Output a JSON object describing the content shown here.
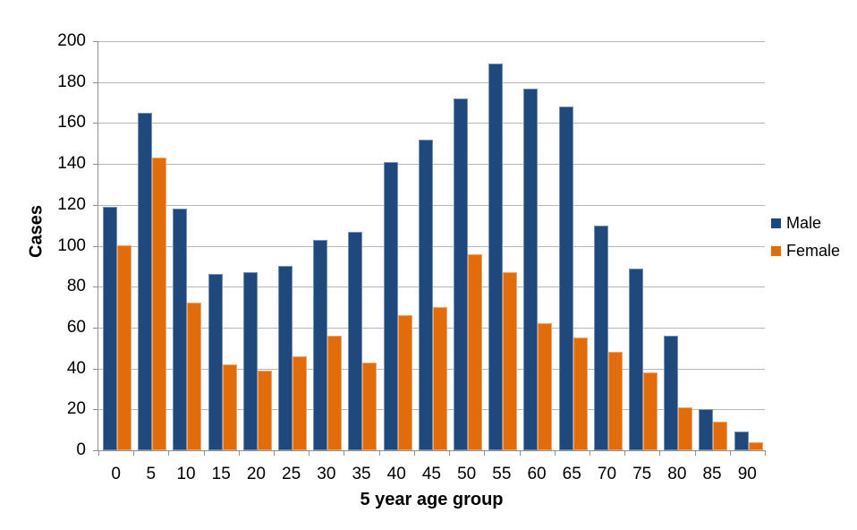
{
  "chart_data": {
    "type": "bar",
    "title": "",
    "categories": [
      "0",
      "5",
      "10",
      "15",
      "20",
      "25",
      "30",
      "35",
      "40",
      "45",
      "50",
      "55",
      "60",
      "65",
      "70",
      "75",
      "80",
      "85",
      "90"
    ],
    "series": [
      {
        "name": "Male",
        "color": "#1F497D",
        "values": [
          119,
          165,
          118,
          86,
          87,
          90,
          103,
          107,
          141,
          152,
          172,
          189,
          177,
          168,
          110,
          89,
          56,
          20,
          9
        ]
      },
      {
        "name": "Female",
        "color": "#E36C0A",
        "values": [
          100,
          143,
          72,
          42,
          39,
          46,
          56,
          43,
          66,
          70,
          96,
          87,
          62,
          55,
          48,
          38,
          21,
          14,
          4
        ]
      }
    ],
    "xlabel": "5 year age group",
    "ylabel": "Cases",
    "ylim": [
      0,
      200
    ],
    "ytick_step": 20,
    "grid": true,
    "legend_position": "right",
    "gridline_color": "#B7B7B7",
    "axis_line_color": "#8E8E8E"
  }
}
